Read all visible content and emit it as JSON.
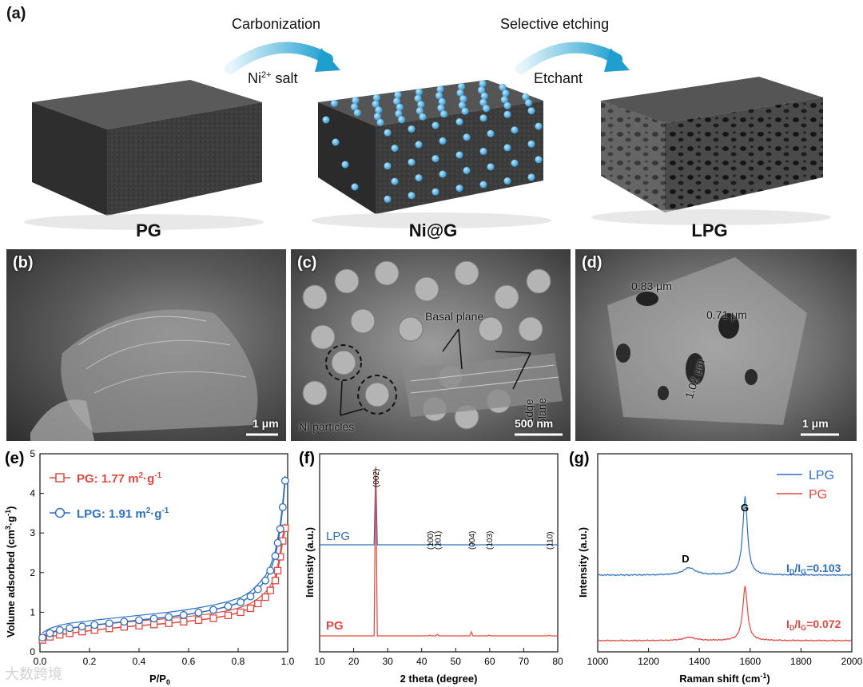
{
  "panel_a": {
    "label": "(a)",
    "stages": [
      "PG",
      "Ni@G",
      "LPG"
    ],
    "steps": [
      {
        "top": "Carbonization",
        "bottom_main": "Ni",
        "bottom_sup": "2+",
        "bottom_rest": " salt"
      },
      {
        "top": "Selective etching",
        "bottom_main": "Etchant",
        "bottom_sup": "",
        "bottom_rest": ""
      }
    ],
    "colors": {
      "block": "#3a3a3a",
      "particle": "#3fa9e0",
      "arrow": "#2aa7d6"
    }
  },
  "panel_b": {
    "label": "(b)",
    "scale": "1 μm"
  },
  "panel_c": {
    "label": "(c)",
    "scale": "500 nm",
    "annotations": [
      "Basal plane",
      "Edge plane",
      "Ni  particles"
    ]
  },
  "panel_d": {
    "label": "(d)",
    "scale": "1 μm",
    "annotations": [
      "0.83 μm",
      "0.71 μm",
      "1.02 μm"
    ]
  },
  "watermark": "大数跨境",
  "chart_data": [
    {
      "panel": "(e)",
      "type": "line",
      "xlabel": "P/P",
      "xlabel_sub": "0",
      "ylabel": "Volume adsorbed (cm",
      "ylabel_tail": "·g",
      "xlim": [
        0.0,
        1.0
      ],
      "ylim": [
        0,
        5
      ],
      "xticks": [
        "0.0",
        "0.2",
        "0.4",
        "0.6",
        "0.8",
        "1.0"
      ],
      "yticks": [
        "0",
        "1",
        "2",
        "3",
        "4",
        "5"
      ],
      "series": [
        {
          "name": "PG: 1.77 m",
          "name_tail": "·g",
          "color": "#e0483f",
          "marker": "square",
          "x": [
            0.01,
            0.04,
            0.08,
            0.12,
            0.17,
            0.22,
            0.28,
            0.34,
            0.4,
            0.46,
            0.52,
            0.58,
            0.64,
            0.7,
            0.76,
            0.81,
            0.85,
            0.88,
            0.91,
            0.93,
            0.95,
            0.96,
            0.97,
            0.98,
            0.99
          ],
          "y": [
            0.3,
            0.38,
            0.43,
            0.47,
            0.51,
            0.55,
            0.59,
            0.63,
            0.66,
            0.69,
            0.72,
            0.76,
            0.8,
            0.85,
            0.92,
            1.0,
            1.1,
            1.22,
            1.38,
            1.55,
            1.8,
            2.05,
            2.4,
            2.8,
            3.12
          ]
        },
        {
          "name": "LPG: 1.91 m",
          "name_tail": "·g",
          "color": "#2f6fc2",
          "marker": "circle",
          "x": [
            0.01,
            0.04,
            0.08,
            0.12,
            0.17,
            0.22,
            0.28,
            0.34,
            0.4,
            0.46,
            0.52,
            0.58,
            0.64,
            0.7,
            0.76,
            0.81,
            0.85,
            0.88,
            0.91,
            0.93,
            0.95,
            0.96,
            0.97,
            0.98,
            0.99
          ],
          "y": [
            0.36,
            0.47,
            0.55,
            0.6,
            0.64,
            0.68,
            0.72,
            0.76,
            0.8,
            0.84,
            0.88,
            0.93,
            0.99,
            1.06,
            1.15,
            1.25,
            1.4,
            1.58,
            1.8,
            2.05,
            2.42,
            2.75,
            3.1,
            3.65,
            4.32
          ]
        }
      ]
    },
    {
      "panel": "(f)",
      "type": "line",
      "xlabel": "2 theta (degree)",
      "ylabel": "Intensity (a.u.)",
      "xlim": [
        10,
        80
      ],
      "xticks": [
        "10",
        "20",
        "30",
        "40",
        "50",
        "60",
        "70",
        "80"
      ],
      "peaks": [
        {
          "label": "(002)",
          "x": 26.5
        },
        {
          "label": "(100)",
          "x": 42.4
        },
        {
          "label": "(101)",
          "x": 44.6
        },
        {
          "label": "(004)",
          "x": 54.6
        },
        {
          "label": "(103)",
          "x": 59.8
        },
        {
          "label": "(110)",
          "x": 77.5
        }
      ],
      "series": [
        {
          "name": "LPG",
          "color": "#2f6fc2"
        },
        {
          "name": "PG",
          "color": "#e0483f"
        }
      ]
    },
    {
      "panel": "(g)",
      "type": "line",
      "xlabel": "Raman shift (cm",
      "ylabel": "Intensity (a.u.)",
      "xlim": [
        1000,
        2000
      ],
      "xticks": [
        "1000",
        "1200",
        "1400",
        "1600",
        "1800",
        "2000"
      ],
      "band_labels": [
        {
          "label": "D",
          "x": 1360
        },
        {
          "label": "G",
          "x": 1580
        }
      ],
      "series": [
        {
          "name": "LPG",
          "color": "#2f6fc2",
          "ratio": "=0.103"
        },
        {
          "name": "PG",
          "color": "#e0483f",
          "ratio": "=0.072"
        }
      ],
      "ratio_prefix": "I",
      "ratio_sub1": "D",
      "ratio_slash": "/I",
      "ratio_sub2": "G"
    }
  ]
}
